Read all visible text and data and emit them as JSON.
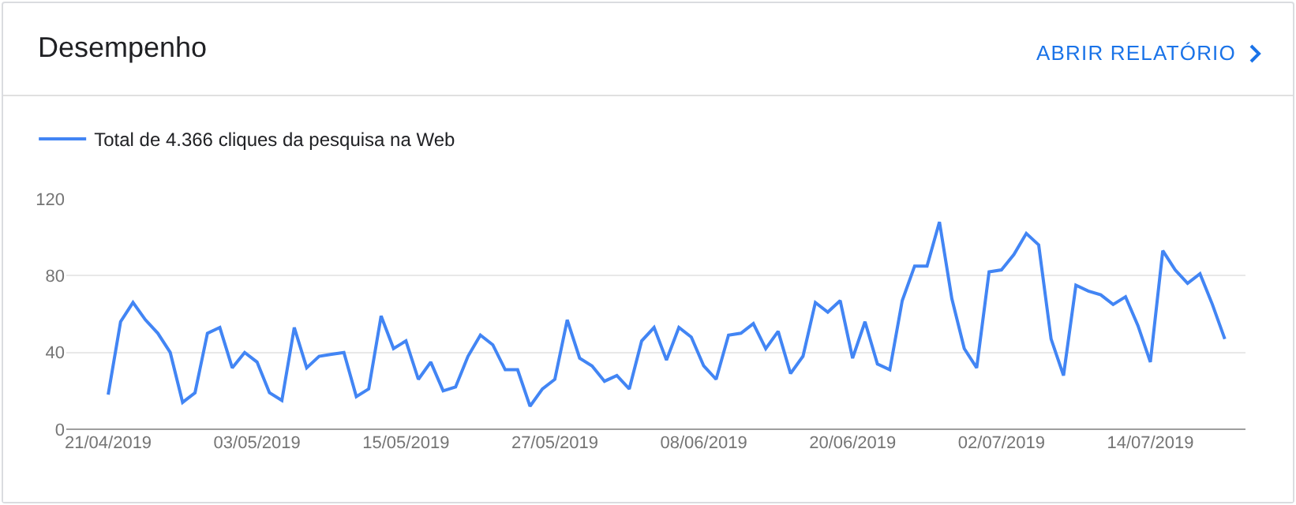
{
  "chart_data": {
    "type": "line",
    "title": "Desempenho",
    "annotations": [
      "ABRIR RELATÓRIO"
    ],
    "x": [
      "2019-04-21",
      "2019-04-22",
      "2019-04-23",
      "2019-04-24",
      "2019-04-25",
      "2019-04-26",
      "2019-04-27",
      "2019-04-28",
      "2019-04-29",
      "2019-04-30",
      "2019-05-01",
      "2019-05-02",
      "2019-05-03",
      "2019-05-04",
      "2019-05-05",
      "2019-05-06",
      "2019-05-07",
      "2019-05-08",
      "2019-05-09",
      "2019-05-10",
      "2019-05-11",
      "2019-05-12",
      "2019-05-13",
      "2019-05-14",
      "2019-05-15",
      "2019-05-16",
      "2019-05-17",
      "2019-05-18",
      "2019-05-19",
      "2019-05-20",
      "2019-05-21",
      "2019-05-22",
      "2019-05-23",
      "2019-05-24",
      "2019-05-25",
      "2019-05-26",
      "2019-05-27",
      "2019-05-28",
      "2019-05-29",
      "2019-05-30",
      "2019-05-31",
      "2019-06-01",
      "2019-06-02",
      "2019-06-03",
      "2019-06-04",
      "2019-06-05",
      "2019-06-06",
      "2019-06-07",
      "2019-06-08",
      "2019-06-09",
      "2019-06-10",
      "2019-06-11",
      "2019-06-12",
      "2019-06-13",
      "2019-06-14",
      "2019-06-15",
      "2019-06-16",
      "2019-06-17",
      "2019-06-18",
      "2019-06-19",
      "2019-06-20",
      "2019-06-21",
      "2019-06-22",
      "2019-06-23",
      "2019-06-24",
      "2019-06-25",
      "2019-06-26",
      "2019-06-27",
      "2019-06-28",
      "2019-06-29",
      "2019-06-30",
      "2019-07-01",
      "2019-07-02",
      "2019-07-03",
      "2019-07-04",
      "2019-07-05",
      "2019-07-06",
      "2019-07-07",
      "2019-07-08",
      "2019-07-09",
      "2019-07-10",
      "2019-07-11",
      "2019-07-12",
      "2019-07-13",
      "2019-07-14",
      "2019-07-15",
      "2019-07-16",
      "2019-07-17",
      "2019-07-18",
      "2019-07-19",
      "2019-07-20"
    ],
    "series": [
      {
        "name": "Total de 4.366 cliques da pesquisa na Web",
        "color": "#4285f4",
        "values": [
          18,
          56,
          66,
          57,
          50,
          40,
          14,
          19,
          50,
          53,
          32,
          40,
          35,
          19,
          15,
          53,
          32,
          38,
          39,
          40,
          17,
          21,
          59,
          42,
          46,
          26,
          35,
          20,
          22,
          38,
          49,
          44,
          31,
          31,
          12,
          21,
          26,
          57,
          37,
          33,
          25,
          28,
          21,
          46,
          53,
          36,
          53,
          48,
          33,
          26,
          49,
          50,
          55,
          42,
          51,
          29,
          38,
          66,
          61,
          67,
          37,
          56,
          34,
          31,
          67,
          85,
          85,
          108,
          68,
          42,
          32,
          82,
          83,
          91,
          102,
          96,
          47,
          28,
          75,
          72,
          70,
          65,
          69,
          54,
          35,
          93,
          83,
          76,
          81,
          65,
          47
        ]
      }
    ],
    "xlim": [
      "2019-04-17T15:00",
      "2019-07-21T16:00"
    ],
    "xticks": [
      {
        "value": "2019-04-21",
        "label": "21/04/2019"
      },
      {
        "value": "2019-05-03",
        "label": "03/05/2019"
      },
      {
        "value": "2019-05-15",
        "label": "15/05/2019"
      },
      {
        "value": "2019-05-27",
        "label": "27/05/2019"
      },
      {
        "value": "2019-06-08",
        "label": "08/06/2019"
      },
      {
        "value": "2019-06-20",
        "label": "20/06/2019"
      },
      {
        "value": "2019-07-02",
        "label": "02/07/2019"
      },
      {
        "value": "2019-07-14",
        "label": "14/07/2019"
      }
    ],
    "ylim": [
      0,
      120
    ],
    "yticks": [
      0,
      40,
      80,
      120
    ],
    "grid": "y",
    "legend": "top left",
    "marker": "none",
    "line_style": "solid"
  }
}
